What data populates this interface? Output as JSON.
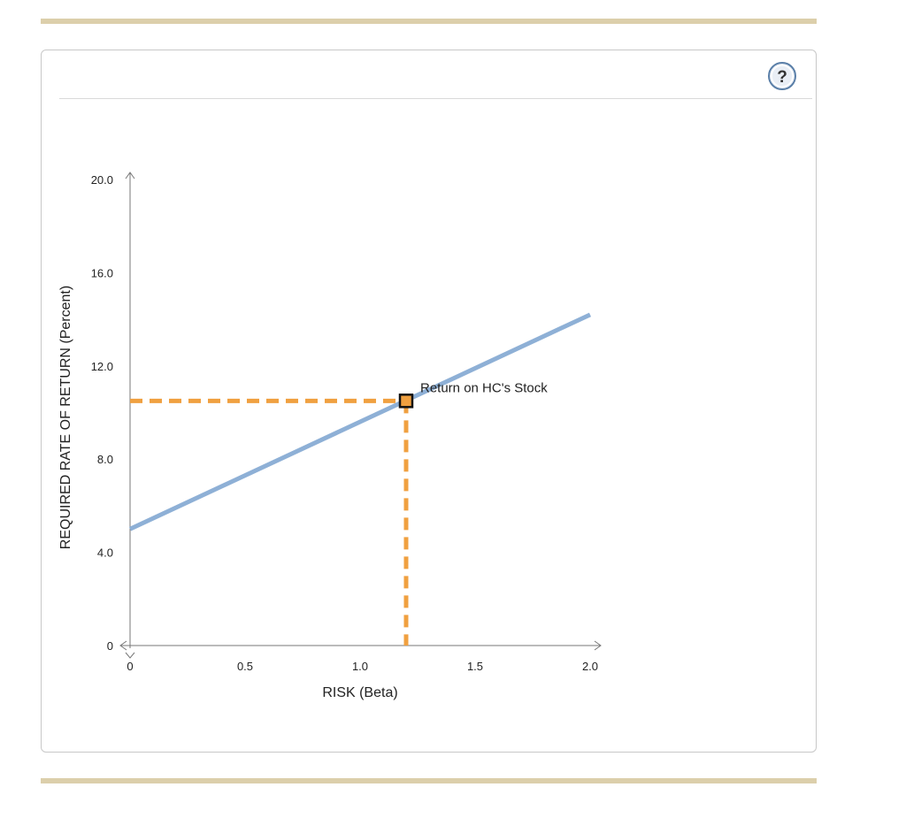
{
  "help": {
    "icon": "help-icon",
    "label": "?"
  },
  "chart_data": {
    "type": "line",
    "xlabel": "RISK (Beta)",
    "ylabel": "REQUIRED RATE OF RETURN (Percent)",
    "xlim": [
      0,
      2.0
    ],
    "ylim": [
      0,
      20.0
    ],
    "x_ticks": [
      "0",
      "0.5",
      "1.0",
      "1.5",
      "2.0"
    ],
    "y_ticks": [
      "0",
      "4.0",
      "8.0",
      "12.0",
      "16.0",
      "20.0"
    ],
    "series": [
      {
        "x": [
          0,
          2.0
        ],
        "y": [
          5.0,
          14.2
        ],
        "color": "#8eb0d6"
      }
    ],
    "point": {
      "x": 1.2,
      "y": 10.5,
      "label": "Return on HC's Stock",
      "color": "#f0a040"
    },
    "guide_color": "#f0a040",
    "grid": false
  }
}
